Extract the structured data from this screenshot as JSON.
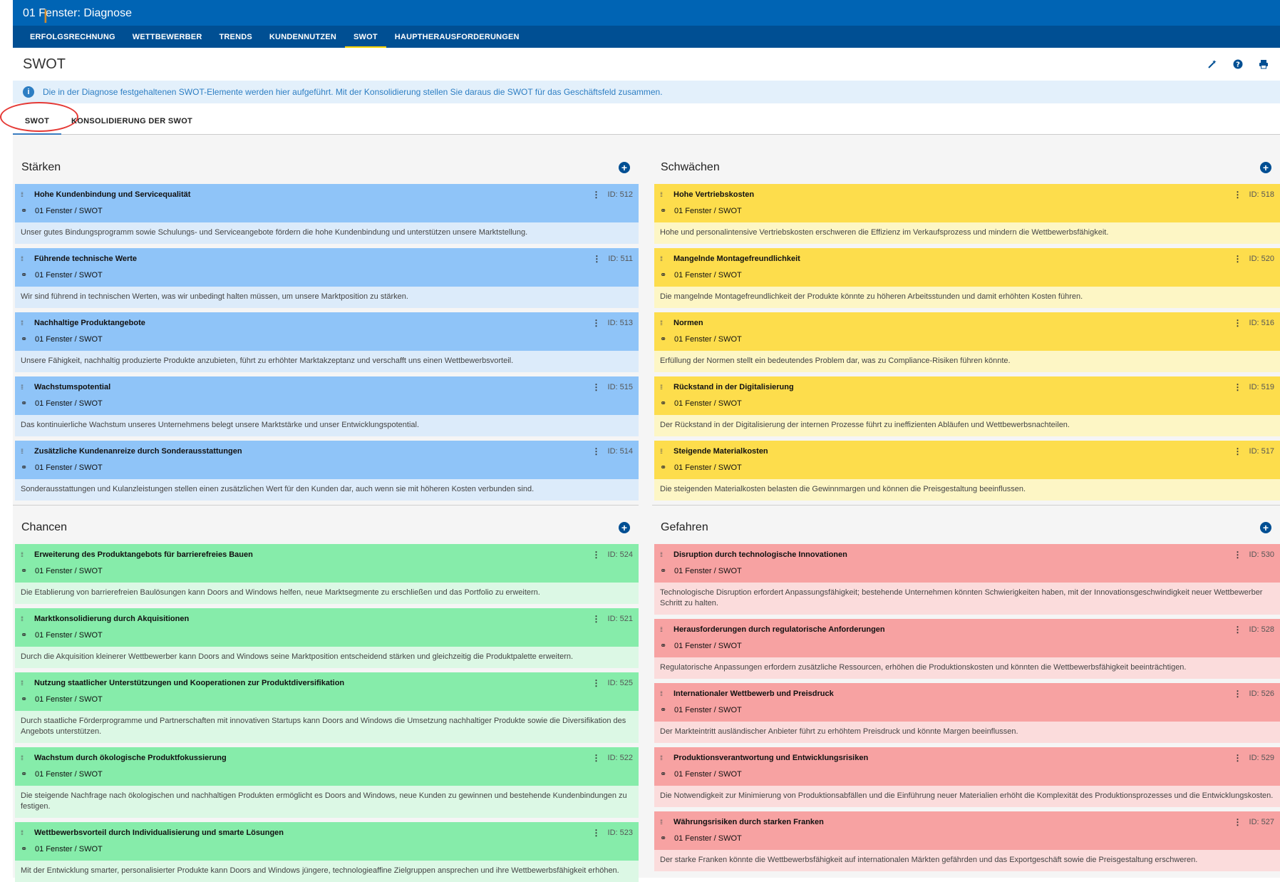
{
  "app": {
    "title": "01 Fenster: Diagnose"
  },
  "nav": {
    "items": [
      {
        "label": "ERFOLGSRECHNUNG"
      },
      {
        "label": "WETTBEWERBER"
      },
      {
        "label": "TRENDS"
      },
      {
        "label": "KUNDENNUTZEN"
      },
      {
        "label": "SWOT"
      },
      {
        "label": "HAUPTHERAUSFORDERUNGEN"
      }
    ],
    "active": "SWOT"
  },
  "page": {
    "title": "SWOT",
    "icons": [
      "magic-wand-icon",
      "help-icon",
      "print-icon"
    ]
  },
  "info": {
    "text": "Die in der Diagnose festgehaltenen SWOT-Elemente werden hier aufgeführt. Mit der Konsolidierung stellen Sie daraus die SWOT für das Geschäftsfeld zusammen."
  },
  "tabs": [
    {
      "label": "SWOT"
    },
    {
      "label": "KONSOLIDIERUNG DER SWOT"
    }
  ],
  "colors": {
    "header": "#0064b4",
    "nav": "#004f93",
    "strengths": "#8fc4f8",
    "weaknesses": "#fddd4c",
    "opportunities": "#86ecaa",
    "threats": "#f7a2a2"
  },
  "strengths": {
    "title": "Stärken",
    "cards": [
      {
        "title": "Hohe Kundenbindung und Servicequalität",
        "id": "ID: 512",
        "link": "01 Fenster / SWOT",
        "desc": "Unser gutes Bindungsprogramm sowie Schulungs- und Serviceangebote fördern die hohe Kundenbindung und unterstützen unsere Marktstellung."
      },
      {
        "title": "Führende technische Werte",
        "id": "ID: 511",
        "link": "01 Fenster / SWOT",
        "desc": "Wir sind führend in technischen Werten, was wir unbedingt halten müssen, um unsere Marktposition zu stärken."
      },
      {
        "title": "Nachhaltige Produktangebote",
        "id": "ID: 513",
        "link": "01 Fenster / SWOT",
        "desc": "Unsere Fähigkeit, nachhaltig produzierte Produkte anzubieten, führt zu erhöhter Marktakzeptanz und verschafft uns einen Wettbewerbsvorteil."
      },
      {
        "title": "Wachstumspotential",
        "id": "ID: 515",
        "link": "01 Fenster / SWOT",
        "desc": "Das kontinuierliche Wachstum unseres Unternehmens belegt unsere Marktstärke und unser Entwicklungspotential."
      },
      {
        "title": "Zusätzliche Kundenanreize durch Sonderausstattungen",
        "id": "ID: 514",
        "link": "01 Fenster / SWOT",
        "desc": "Sonderausstattungen und Kulanzleistungen stellen einen zusätzlichen Wert für den Kunden dar, auch wenn sie mit höheren Kosten verbunden sind."
      }
    ]
  },
  "weaknesses": {
    "title": "Schwächen",
    "cards": [
      {
        "title": "Hohe Vertriebskosten",
        "id": "ID: 518",
        "link": "01 Fenster / SWOT",
        "desc": "Hohe und personalintensive Vertriebskosten erschweren die Effizienz im Verkaufsprozess und mindern die Wettbewerbsfähigkeit."
      },
      {
        "title": "Mangelnde Montagefreundlichkeit",
        "id": "ID: 520",
        "link": "01 Fenster / SWOT",
        "desc": "Die mangelnde Montagefreundlichkeit der Produkte könnte zu höheren Arbeitsstunden und damit erhöhten Kosten führen."
      },
      {
        "title": "Normen",
        "id": "ID: 516",
        "link": "01 Fenster / SWOT",
        "desc": "Erfüllung der Normen stellt ein bedeutendes Problem dar, was zu Compliance-Risiken führen könnte."
      },
      {
        "title": "Rückstand in der Digitalisierung",
        "id": "ID: 519",
        "link": "01 Fenster / SWOT",
        "desc": "Der Rückstand in der Digitalisierung der internen Prozesse führt zu ineffizienten Abläufen und Wettbewerbsnachteilen."
      },
      {
        "title": "Steigende Materialkosten",
        "id": "ID: 517",
        "link": "01 Fenster / SWOT",
        "desc": "Die steigenden Materialkosten belasten die Gewinnmargen und können die Preisgestaltung beeinflussen."
      }
    ]
  },
  "opportunities": {
    "title": "Chancen",
    "cards": [
      {
        "title": "Erweiterung des Produktangebots für barrierefreies Bauen",
        "id": "ID: 524",
        "link": "01 Fenster / SWOT",
        "desc": "Die Etablierung von barrierefreien Baulösungen kann Doors and Windows helfen, neue Marktsegmente zu erschließen und das Portfolio zu erweitern."
      },
      {
        "title": "Marktkonsolidierung durch Akquisitionen",
        "id": "ID: 521",
        "link": "01 Fenster / SWOT",
        "desc": "Durch die Akquisition kleinerer Wettbewerber kann Doors and Windows seine Marktposition entscheidend stärken und gleichzeitig die Produktpalette erweitern."
      },
      {
        "title": "Nutzung staatlicher Unterstützungen und Kooperationen zur Produktdiversifikation",
        "id": "ID: 525",
        "link": "01 Fenster / SWOT",
        "desc": "Durch staatliche Förderprogramme und Partnerschaften mit innovativen Startups kann Doors and Windows die Umsetzung nachhaltiger Produkte sowie die Diversifikation des Angebots unterstützen."
      },
      {
        "title": "Wachstum durch ökologische Produktfokussierung",
        "id": "ID: 522",
        "link": "01 Fenster / SWOT",
        "desc": "Die steigende Nachfrage nach ökologischen und nachhaltigen Produkten ermöglicht es Doors and Windows, neue Kunden zu gewinnen und bestehende Kundenbindungen zu festigen."
      },
      {
        "title": "Wettbewerbsvorteil durch Individualisierung und smarte Lösungen",
        "id": "ID: 523",
        "link": "01 Fenster / SWOT",
        "desc": "Mit der Entwicklung smarter, personalisierter Produkte kann Doors and Windows jüngere, technologieaffine Zielgruppen ansprechen und ihre Wettbewerbsfähigkeit erhöhen."
      }
    ]
  },
  "threats": {
    "title": "Gefahren",
    "cards": [
      {
        "title": "Disruption durch technologische Innovationen",
        "id": "ID: 530",
        "link": "01 Fenster / SWOT",
        "desc": "Technologische Disruption erfordert Anpassungsfähigkeit; bestehende Unternehmen könnten Schwierigkeiten haben, mit der Innovationsgeschwindigkeit neuer Wettbewerber Schritt zu halten."
      },
      {
        "title": "Herausforderungen durch regulatorische Anforderungen",
        "id": "ID: 528",
        "link": "01 Fenster / SWOT",
        "desc": "Regulatorische Anpassungen erfordern zusätzliche Ressourcen, erhöhen die Produktionskosten und könnten die Wettbewerbsfähigkeit beeinträchtigen."
      },
      {
        "title": "Internationaler Wettbewerb und Preisdruck",
        "id": "ID: 526",
        "link": "01 Fenster / SWOT",
        "desc": "Der Markteintritt ausländischer Anbieter führt zu erhöhtem Preisdruck und könnte Margen beeinflussen."
      },
      {
        "title": "Produktionsverantwortung und Entwicklungsrisiken",
        "id": "ID: 529",
        "link": "01 Fenster / SWOT",
        "desc": "Die Notwendigkeit zur Minimierung von Produktionsabfällen und die Einführung neuer Materialien erhöht die Komplexität des Produktionsprozesses und die Entwicklungskosten."
      },
      {
        "title": "Währungsrisiken durch starken Franken",
        "id": "ID: 527",
        "link": "01 Fenster / SWOT",
        "desc": "Der starke Franken könnte die Wettbewerbsfähigkeit auf internationalen Märkten gefährden und das Exportgeschäft sowie die Preisgestaltung erschweren."
      }
    ]
  }
}
